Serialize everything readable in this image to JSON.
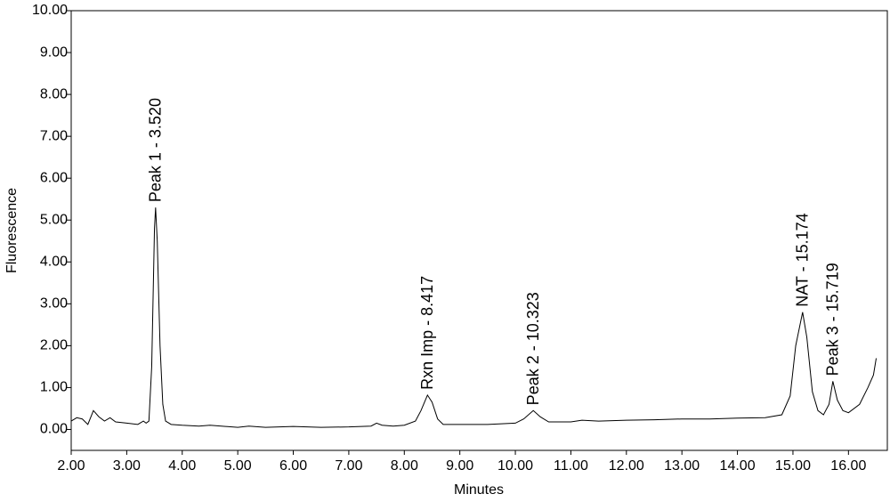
{
  "chart_data": {
    "type": "line",
    "xlabel": "Minutes",
    "ylabel": "Fluorescence",
    "color": "#000000",
    "xlim": [
      2.0,
      16.7
    ],
    "ylim": [
      -0.5,
      10
    ],
    "xticks": [
      {
        "value": 2,
        "label": "2.00"
      },
      {
        "value": 3,
        "label": "3.00"
      },
      {
        "value": 4,
        "label": "4.00"
      },
      {
        "value": 5,
        "label": "5.00"
      },
      {
        "value": 6,
        "label": "6.00"
      },
      {
        "value": 7,
        "label": "7.00"
      },
      {
        "value": 8,
        "label": "8.00"
      },
      {
        "value": 9,
        "label": "9.00"
      },
      {
        "value": 10,
        "label": "10.00"
      },
      {
        "value": 11,
        "label": "11.00"
      },
      {
        "value": 12,
        "label": "12.00"
      },
      {
        "value": 13,
        "label": "13.00"
      },
      {
        "value": 14,
        "label": "14.00"
      },
      {
        "value": 15,
        "label": "15.00"
      },
      {
        "value": 16,
        "label": "16.00"
      }
    ],
    "yticks": [
      {
        "value": 0,
        "label": "0.00"
      },
      {
        "value": 1,
        "label": "1.00"
      },
      {
        "value": 2,
        "label": "2.00"
      },
      {
        "value": 3,
        "label": "3.00"
      },
      {
        "value": 4,
        "label": "4.00"
      },
      {
        "value": 5,
        "label": "5.00"
      },
      {
        "value": 6,
        "label": "6.00"
      },
      {
        "value": 7,
        "label": "7.00"
      },
      {
        "value": 8,
        "label": "8.00"
      },
      {
        "value": 9,
        "label": "9.00"
      },
      {
        "value": 10,
        "label": "10.00"
      }
    ],
    "x": [
      2.0,
      2.1,
      2.2,
      2.3,
      2.4,
      2.5,
      2.6,
      2.7,
      2.8,
      3.0,
      3.2,
      3.3,
      3.35,
      3.4,
      3.45,
      3.5,
      3.52,
      3.55,
      3.6,
      3.65,
      3.7,
      3.8,
      4.0,
      4.3,
      4.5,
      5.0,
      5.2,
      5.5,
      6.0,
      6.5,
      7.0,
      7.4,
      7.5,
      7.6,
      7.8,
      8.0,
      8.2,
      8.3,
      8.417,
      8.5,
      8.6,
      8.7,
      9.0,
      9.5,
      10.0,
      10.15,
      10.323,
      10.45,
      10.6,
      11.0,
      11.2,
      11.5,
      12.0,
      12.5,
      13.0,
      13.5,
      14.0,
      14.5,
      14.8,
      14.95,
      15.05,
      15.174,
      15.25,
      15.35,
      15.45,
      15.55,
      15.65,
      15.719,
      15.8,
      15.9,
      16.0,
      16.2,
      16.35,
      16.45,
      16.5
    ],
    "values": [
      0.2,
      0.28,
      0.25,
      0.12,
      0.45,
      0.3,
      0.2,
      0.28,
      0.18,
      0.15,
      0.12,
      0.2,
      0.15,
      0.2,
      1.5,
      4.8,
      5.3,
      4.5,
      2.0,
      0.6,
      0.2,
      0.12,
      0.1,
      0.08,
      0.1,
      0.05,
      0.08,
      0.05,
      0.07,
      0.05,
      0.06,
      0.08,
      0.15,
      0.1,
      0.08,
      0.1,
      0.2,
      0.45,
      0.82,
      0.65,
      0.25,
      0.12,
      0.12,
      0.12,
      0.15,
      0.25,
      0.45,
      0.3,
      0.18,
      0.18,
      0.22,
      0.2,
      0.22,
      0.23,
      0.25,
      0.25,
      0.27,
      0.28,
      0.35,
      0.8,
      2.0,
      2.8,
      2.2,
      0.9,
      0.45,
      0.35,
      0.6,
      1.15,
      0.7,
      0.45,
      0.4,
      0.6,
      1.0,
      1.3,
      1.7
    ],
    "annotations": [
      {
        "text": "Peak 1 - 3.520",
        "x": 3.52,
        "y": 5.3
      },
      {
        "text": "Rxn Imp - 8.417",
        "x": 8.417,
        "y": 0.82
      },
      {
        "text": "Peak 2 - 10.323",
        "x": 10.323,
        "y": 0.45
      },
      {
        "text": "NAT - 15.174",
        "x": 15.174,
        "y": 2.8
      },
      {
        "text": "Peak 3 - 15.719",
        "x": 15.719,
        "y": 1.15
      }
    ]
  }
}
